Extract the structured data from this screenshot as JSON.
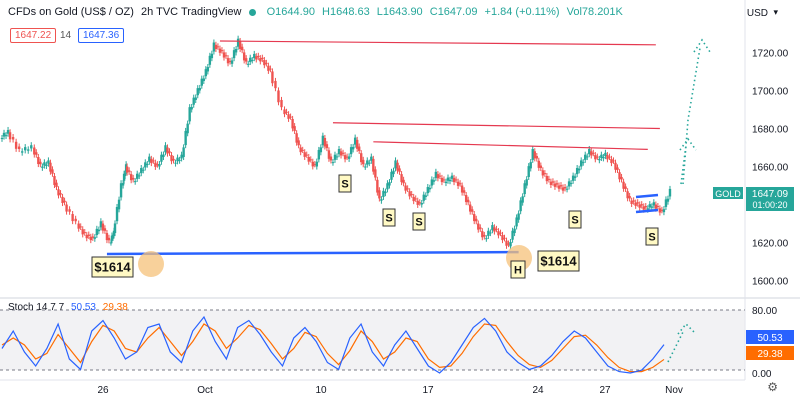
{
  "header": {
    "symbol": "CFDs on Gold (US$ / OZ)",
    "interval": "2h",
    "exchange": "TVC",
    "source": "TradingView",
    "open": "O1644.90",
    "high": "H1648.63",
    "low": "L1643.90",
    "close": "C1647.09",
    "change": "+1.84 (+0.11%)",
    "volume": "Vol78.201K",
    "sell_price": "1647.22",
    "spread": "14",
    "buy_price": "1647.36"
  },
  "currency_label": "USD",
  "price_tag": {
    "symbol": "GOLD",
    "price": "1647.09",
    "countdown": "01:00:20"
  },
  "annotations": {
    "low_left": "$1614",
    "low_right": "$1614",
    "s_label": "S",
    "h_label": "H"
  },
  "stoch": {
    "label": "Stoch",
    "params": "14 7 7",
    "k_value": "50.53",
    "d_value": "29.38"
  },
  "colors": {
    "up": "#26a69a",
    "down": "#ef5350",
    "blue_line": "#2962ff",
    "red_line": "#e53950",
    "orange": "#ff6d00",
    "dotted_green": "#26a69a"
  },
  "chart_data": {
    "type": "line",
    "title": "CFDs on Gold (US$ / OZ), 2h, TVC",
    "x_ticks": [
      "26",
      "Oct",
      "10",
      "17",
      "24",
      "27",
      "Nov"
    ],
    "y_ticks": [
      1720,
      1700,
      1680,
      1660,
      1640,
      1620,
      1600
    ],
    "ylim": [
      1594,
      1736
    ],
    "price_path": [
      [
        0,
        1675
      ],
      [
        0.02,
        1678
      ],
      [
        0.05,
        1668
      ],
      [
        0.08,
        1670
      ],
      [
        0.1,
        1660
      ],
      [
        0.12,
        1662
      ],
      [
        0.14,
        1648
      ],
      [
        0.16,
        1640
      ],
      [
        0.19,
        1630
      ],
      [
        0.21,
        1624
      ],
      [
        0.23,
        1622
      ],
      [
        0.25,
        1630
      ],
      [
        0.27,
        1620
      ],
      [
        0.28,
        1625
      ],
      [
        0.3,
        1650
      ],
      [
        0.31,
        1660
      ],
      [
        0.33,
        1652
      ],
      [
        0.35,
        1658
      ],
      [
        0.37,
        1664
      ],
      [
        0.39,
        1660
      ],
      [
        0.41,
        1670
      ],
      [
        0.43,
        1662
      ],
      [
        0.45,
        1665
      ],
      [
        0.47,
        1690
      ],
      [
        0.49,
        1700
      ],
      [
        0.51,
        1710
      ],
      [
        0.53,
        1724
      ],
      [
        0.55,
        1720
      ],
      [
        0.57,
        1714
      ],
      [
        0.59,
        1726
      ],
      [
        0.61,
        1714
      ],
      [
        0.63,
        1718
      ],
      [
        0.65,
        1716
      ],
      [
        0.67,
        1710
      ],
      [
        0.7,
        1690
      ],
      [
        0.72,
        1685
      ],
      [
        0.74,
        1670
      ],
      [
        0.76,
        1665
      ],
      [
        0.78,
        1660
      ],
      [
        0.8,
        1675
      ],
      [
        0.82,
        1662
      ],
      [
        0.84,
        1668
      ],
      [
        0.86,
        1664
      ],
      [
        0.88,
        1674
      ],
      [
        0.9,
        1660
      ],
      [
        0.92,
        1664
      ],
      [
        0.94,
        1642
      ],
      [
        0.96,
        1650
      ],
      [
        0.98,
        1662
      ],
      [
        1.0,
        1650
      ],
      [
        1.02,
        1644
      ],
      [
        1.04,
        1640
      ],
      [
        1.06,
        1648
      ],
      [
        1.08,
        1656
      ],
      [
        1.1,
        1652
      ],
      [
        1.12,
        1654
      ],
      [
        1.14,
        1650
      ],
      [
        1.16,
        1640
      ],
      [
        1.18,
        1630
      ],
      [
        1.2,
        1622
      ],
      [
        1.22,
        1628
      ],
      [
        1.24,
        1624
      ],
      [
        1.26,
        1618
      ],
      [
        1.28,
        1632
      ],
      [
        1.3,
        1650
      ],
      [
        1.32,
        1668
      ],
      [
        1.34,
        1658
      ],
      [
        1.36,
        1652
      ],
      [
        1.38,
        1650
      ],
      [
        1.4,
        1648
      ],
      [
        1.42,
        1654
      ],
      [
        1.44,
        1662
      ],
      [
        1.46,
        1668
      ],
      [
        1.48,
        1664
      ],
      [
        1.5,
        1666
      ],
      [
        1.52,
        1662
      ],
      [
        1.54,
        1652
      ],
      [
        1.56,
        1642
      ],
      [
        1.58,
        1640
      ],
      [
        1.6,
        1638
      ],
      [
        1.62,
        1640
      ],
      [
        1.64,
        1636
      ],
      [
        1.66,
        1647
      ]
    ],
    "lines": [
      {
        "name": "support",
        "from": [
          0.26,
          1614
        ],
        "to": [
          1.28,
          1615
        ]
      },
      {
        "name": "resistance-1",
        "from": [
          0.54,
          1726
        ],
        "to": [
          1.62,
          1724
        ]
      },
      {
        "name": "resistance-2",
        "from": [
          0.82,
          1683
        ],
        "to": [
          1.63,
          1680
        ]
      },
      {
        "name": "resistance-3",
        "from": [
          0.92,
          1673
        ],
        "to": [
          1.6,
          1669
        ]
      }
    ],
    "stoch_k": [
      45,
      70,
      40,
      20,
      45,
      80,
      30,
      15,
      70,
      85,
      60,
      30,
      40,
      75,
      80,
      40,
      25,
      70,
      90,
      55,
      30,
      75,
      85,
      65,
      40,
      20,
      60,
      75,
      55,
      25,
      15,
      60,
      80,
      40,
      20,
      50,
      70,
      45,
      20,
      10,
      25,
      50,
      75,
      88,
      70,
      40,
      25,
      15,
      20,
      35,
      55,
      70,
      60,
      40,
      20,
      12,
      10,
      14,
      30,
      50.53
    ],
    "stoch_d": [
      50,
      60,
      50,
      30,
      38,
      65,
      45,
      25,
      55,
      78,
      70,
      45,
      40,
      60,
      75,
      55,
      35,
      55,
      80,
      70,
      45,
      60,
      78,
      72,
      52,
      30,
      45,
      68,
      62,
      38,
      22,
      42,
      70,
      55,
      30,
      40,
      60,
      55,
      30,
      18,
      20,
      38,
      62,
      80,
      78,
      55,
      35,
      22,
      18,
      28,
      45,
      62,
      64,
      50,
      32,
      18,
      12,
      12,
      18,
      29.38
    ],
    "stoch_ylim": [
      0,
      100
    ],
    "stoch_ticks": [
      "80.00",
      "0.00"
    ]
  }
}
